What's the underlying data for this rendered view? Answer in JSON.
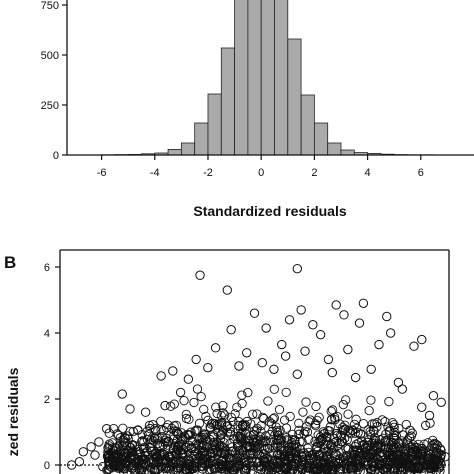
{
  "panel_a": {
    "label": ""
  },
  "panel_b": {
    "label": "B"
  },
  "chart_data": [
    {
      "type": "bar",
      "title": "",
      "xlabel": "Standardized residuals",
      "ylabel": "",
      "xlim": [
        -7.3,
        8.0
      ],
      "ylim": [
        0,
        750
      ],
      "bin_width": 0.5,
      "x_ticks": [
        -6,
        -4,
        -2,
        0,
        2,
        4,
        6
      ],
      "y_ticks": [
        0,
        250,
        500,
        750
      ],
      "bin_lefts": [
        -6,
        -5.5,
        -5,
        -4.5,
        -4,
        -3.5,
        -3,
        -2.5,
        -2,
        -1.5,
        -1,
        -0.5,
        0,
        0.5,
        1,
        1.5,
        2,
        2.5,
        3,
        3.5,
        4,
        4.5,
        5,
        5.5,
        6
      ],
      "values": [
        1,
        2,
        3,
        6,
        10,
        28,
        60,
        160,
        305,
        535,
        900,
        950,
        950,
        900,
        580,
        300,
        160,
        60,
        25,
        12,
        8,
        4,
        2,
        1,
        1
      ],
      "bar_color": "#aaaaaa",
      "grid": false
    },
    {
      "type": "scatter",
      "title": "",
      "xlabel": "",
      "ylabel": "zed residuals",
      "ylim": [
        -0.25,
        6.4
      ],
      "y_ticks": [
        0,
        2,
        4,
        6
      ],
      "reference_line_y": 0,
      "marker": "open-circle",
      "grid": false,
      "points": [
        [
          0.36,
          5.75
        ],
        [
          0.61,
          5.95
        ],
        [
          0.43,
          5.3
        ],
        [
          0.71,
          4.85
        ],
        [
          0.78,
          4.9
        ],
        [
          0.62,
          4.7
        ],
        [
          0.73,
          4.55
        ],
        [
          0.5,
          4.6
        ],
        [
          0.59,
          4.4
        ],
        [
          0.84,
          4.5
        ],
        [
          0.77,
          4.3
        ],
        [
          0.85,
          4.0
        ],
        [
          0.65,
          4.25
        ],
        [
          0.53,
          4.15
        ],
        [
          0.44,
          4.1
        ],
        [
          0.67,
          3.95
        ],
        [
          0.93,
          3.8
        ],
        [
          0.91,
          3.6
        ],
        [
          0.82,
          3.65
        ],
        [
          0.74,
          3.5
        ],
        [
          0.4,
          3.55
        ],
        [
          0.48,
          3.4
        ],
        [
          0.57,
          3.65
        ],
        [
          0.35,
          3.2
        ],
        [
          0.29,
          2.85
        ],
        [
          0.26,
          2.7
        ],
        [
          0.31,
          2.2
        ],
        [
          0.16,
          2.15
        ],
        [
          0.98,
          1.9
        ],
        [
          0.96,
          2.1
        ],
        [
          0.87,
          2.5
        ],
        [
          0.88,
          2.3
        ],
        [
          0.93,
          1.75
        ],
        [
          0.95,
          1.5
        ],
        [
          0.27,
          1.8
        ],
        [
          0.22,
          1.6
        ],
        [
          0.18,
          1.7
        ],
        [
          0.23,
          1.2
        ],
        [
          0.2,
          1.05
        ],
        [
          0.12,
          1.1
        ],
        [
          0.15,
          0.9
        ],
        [
          0.1,
          0.7
        ],
        [
          0.08,
          0.55
        ],
        [
          0.06,
          0.4
        ],
        [
          0.09,
          0.3
        ],
        [
          0.05,
          0.1
        ],
        [
          0.03,
          0.0
        ],
        [
          0.11,
          -0.05
        ],
        [
          0.99,
          0.25
        ],
        [
          0.97,
          0.6
        ],
        [
          0.94,
          1.2
        ],
        [
          0.9,
          1.05
        ],
        [
          0.86,
          0.8
        ],
        [
          0.52,
          3.1
        ],
        [
          0.58,
          3.3
        ],
        [
          0.63,
          3.45
        ],
        [
          0.69,
          3.2
        ],
        [
          0.46,
          3.0
        ],
        [
          0.38,
          2.95
        ],
        [
          0.33,
          2.6
        ],
        [
          0.55,
          2.9
        ],
        [
          0.61,
          2.75
        ],
        [
          0.7,
          2.8
        ],
        [
          0.76,
          2.65
        ],
        [
          0.8,
          2.9
        ]
      ]
    }
  ]
}
